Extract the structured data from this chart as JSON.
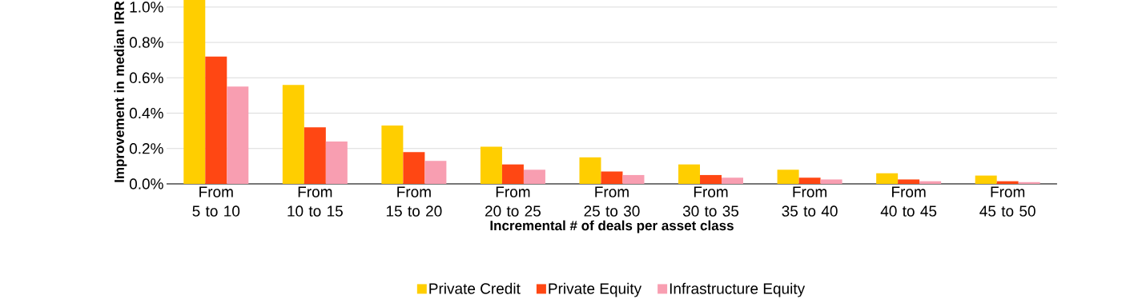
{
  "chart_data": {
    "type": "bar",
    "xlabel": "Incremental # of deals per asset class",
    "ylabel": "Improvement in median IRR",
    "categories": [
      "From\n5 to 10",
      "From\n10 to 15",
      "From\n15 to 20",
      "From\n20 to 25",
      "From\n25 to 30",
      "From\n30 to 35",
      "From\n35 to 40",
      "From\n40 to 45",
      "From\n45 to 50"
    ],
    "series": [
      {
        "name": "Private Credit",
        "color": "#ffce00",
        "values": [
          1.04,
          0.56,
          0.33,
          0.21,
          0.15,
          0.11,
          0.08,
          0.06,
          0.047
        ]
      },
      {
        "name": "Private Equity",
        "color": "#ff4713",
        "values": [
          0.72,
          0.32,
          0.18,
          0.11,
          0.07,
          0.05,
          0.035,
          0.025,
          0.015
        ]
      },
      {
        "name": "Infrastructure Equity",
        "color": "#f89eb1",
        "values": [
          0.55,
          0.24,
          0.13,
          0.08,
          0.05,
          0.035,
          0.025,
          0.015,
          0.01
        ]
      }
    ],
    "ylim": [
      0,
      1.04
    ],
    "yticks": [
      {
        "value": 0,
        "label": "0.0%"
      },
      {
        "value": 0.2,
        "label": "0.2%"
      },
      {
        "value": 0.4,
        "label": "0.4%"
      },
      {
        "value": 0.6,
        "label": "0.6%"
      },
      {
        "value": 0.8,
        "label": "0.8%"
      },
      {
        "value": 1.0,
        "label": "1.0%"
      }
    ],
    "grid": "y",
    "legend": "bottom"
  }
}
